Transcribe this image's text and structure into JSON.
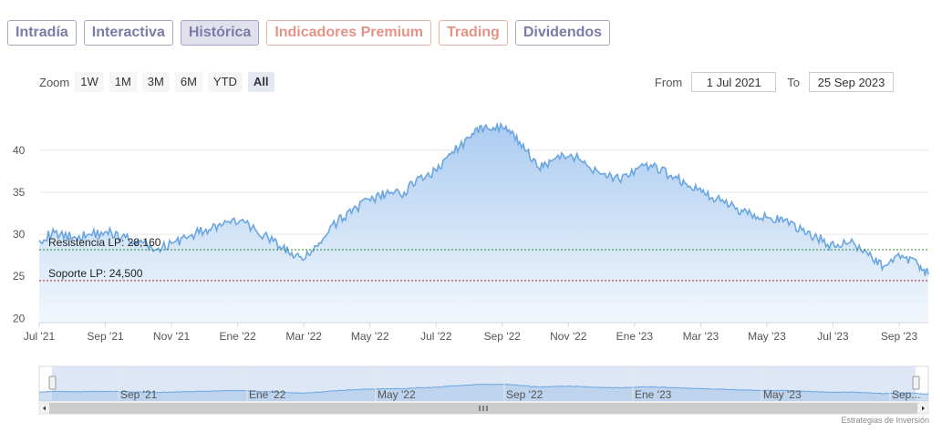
{
  "tabs": [
    {
      "label": "Intradía",
      "style": "purple"
    },
    {
      "label": "Interactiva",
      "style": "purple"
    },
    {
      "label": "Histórica",
      "style": "purple",
      "active": true
    },
    {
      "label": "Indicadores Premium",
      "style": "salmon"
    },
    {
      "label": "Trading",
      "style": "salmon"
    },
    {
      "label": "Dividendos",
      "style": "purple"
    }
  ],
  "zoom": {
    "label": "Zoom",
    "buttons": [
      "1W",
      "1M",
      "3M",
      "6M",
      "YTD",
      "All"
    ],
    "active": "All"
  },
  "range": {
    "from_label": "From",
    "from_value": "1 Jul 2021",
    "to_label": "To",
    "to_value": "25 Sep 2023"
  },
  "credit": "Estrategias de Inversión",
  "colors": {
    "line": "#6aa6e0",
    "fill_top": "#a7c9ef",
    "fill_bottom": "#f2f7fd",
    "resistance": "#2e8b2e",
    "support": "#a0202a",
    "navigator_bg": "#d6e1f2"
  },
  "chart_data": {
    "type": "area",
    "x_tick_labels": [
      "Jul '21",
      "Sep '21",
      "Nov '21",
      "Ene '22",
      "Mar '22",
      "May '22",
      "Jul '22",
      "Sep '22",
      "Nov '22",
      "Ene '23",
      "Mar '23",
      "May '23",
      "Jul '23",
      "Sep '23"
    ],
    "y_ticks": [
      20,
      25,
      30,
      35,
      40
    ],
    "ylim": [
      19.5,
      45.5
    ],
    "xrange": [
      "2021-07-01",
      "2023-09-25"
    ],
    "grid": "horizontal",
    "series": [
      {
        "x": [
          "2021-07-01",
          "2021-07-15",
          "2021-08-01",
          "2021-08-15",
          "2021-09-01",
          "2021-09-15",
          "2021-10-01",
          "2021-10-15",
          "2021-11-01",
          "2021-11-15",
          "2021-12-01",
          "2021-12-15",
          "2022-01-01",
          "2022-01-15",
          "2022-02-01",
          "2022-02-15",
          "2022-03-01",
          "2022-03-15",
          "2022-04-01",
          "2022-04-15",
          "2022-05-01",
          "2022-05-15",
          "2022-06-01",
          "2022-06-15",
          "2022-07-01",
          "2022-07-15",
          "2022-08-01",
          "2022-08-15",
          "2022-09-01",
          "2022-09-15",
          "2022-10-01",
          "2022-10-15",
          "2022-11-01",
          "2022-11-15",
          "2022-12-01",
          "2022-12-15",
          "2023-01-01",
          "2023-01-15",
          "2023-02-01",
          "2023-02-15",
          "2023-03-01",
          "2023-03-15",
          "2023-04-01",
          "2023-04-15",
          "2023-05-01",
          "2023-05-15",
          "2023-06-01",
          "2023-06-15",
          "2023-07-01",
          "2023-07-15",
          "2023-08-01",
          "2023-08-15",
          "2023-09-01",
          "2023-09-15",
          "2023-09-25"
        ],
        "values": [
          29.3,
          30.2,
          29.6,
          30.0,
          30.3,
          29.7,
          29.1,
          28.1,
          29.0,
          29.7,
          30.6,
          31.0,
          31.6,
          30.6,
          29.2,
          27.8,
          27.0,
          29.0,
          31.5,
          33.0,
          34.0,
          34.8,
          35.0,
          36.8,
          37.5,
          39.8,
          41.5,
          43.0,
          42.5,
          41.0,
          38.0,
          38.8,
          39.5,
          38.3,
          37.2,
          36.5,
          37.8,
          38.0,
          37.0,
          36.0,
          35.0,
          34.3,
          33.0,
          32.5,
          32.0,
          31.5,
          30.5,
          29.6,
          28.5,
          29.0,
          27.5,
          26.2,
          27.5,
          26.5,
          25.2
        ]
      }
    ],
    "levels": [
      {
        "name": "Resistencia LP",
        "value": 28.16,
        "label": "Resistencia LP: 28,160"
      },
      {
        "name": "Soporte LP",
        "value": 24.5,
        "label": "Soporte LP: 24,500"
      }
    ],
    "navigator": {
      "x_tick_labels": [
        "Sep '21",
        "Ene '22",
        "May '22",
        "Sep '22",
        "Ene '23",
        "May '23",
        "Sep..."
      ]
    }
  }
}
